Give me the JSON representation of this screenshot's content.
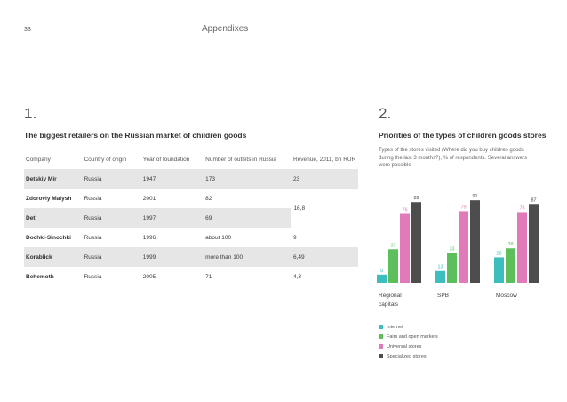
{
  "header": {
    "page_number": "33",
    "title": "Appendixes"
  },
  "section1": {
    "number": "1.",
    "title": "The biggest retailers on the Russian market of children goods",
    "columns": [
      "Company",
      "Country of origin",
      "Year of foundation",
      "Number of outlets in Russia",
      "Revenue, 2011, bn RUR"
    ],
    "rows": [
      {
        "company": "Detskiy Mir",
        "country": "Russia",
        "year": "1947",
        "outlets": "173",
        "revenue": "23"
      },
      {
        "company": "Zdoroviy Malysh",
        "country": "Russia",
        "year": "2001",
        "outlets": "82",
        "revenue": "16,8"
      },
      {
        "company": "Deti",
        "country": "Russia",
        "year": "1997",
        "outlets": "69",
        "revenue": ""
      },
      {
        "company": "Dochki-Sinochki",
        "country": "Russia",
        "year": "1996",
        "outlets": "about 100",
        "revenue": "9"
      },
      {
        "company": "Korablick",
        "country": "Russia",
        "year": "1999",
        "outlets": "more than 100",
        "revenue": "6,49"
      },
      {
        "company": "Behemoth",
        "country": "Russia",
        "year": "2005",
        "outlets": "71",
        "revenue": "4,3"
      }
    ]
  },
  "section2": {
    "number": "2.",
    "title": "Priorities of the types of children goods stores",
    "description": "Types of the stores visited (Where did you buy children goods during the last 3 months?), % of respondents. Several answers were possible"
  },
  "chart_data": {
    "type": "bar",
    "categories": [
      "Regional capitals",
      "SPB",
      "Moscow"
    ],
    "series": [
      {
        "name": "Internet",
        "color": "#3dbdbd",
        "values": [
          9,
          13,
          28
        ]
      },
      {
        "name": "Fairs and open markets",
        "color": "#5cbf5c",
        "values": [
          37,
          33,
          38
        ]
      },
      {
        "name": "Universal stores",
        "color": "#e07ab8",
        "values": [
          76,
          79,
          78
        ]
      },
      {
        "name": "Specialized stores",
        "color": "#4d4d4d",
        "values": [
          89,
          91,
          87
        ]
      }
    ],
    "ylim": [
      0,
      100
    ]
  }
}
